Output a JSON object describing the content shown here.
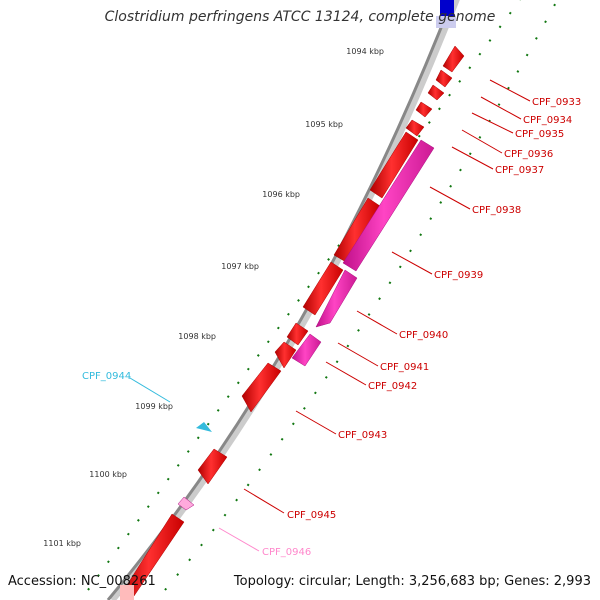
{
  "title": "Clostridium perfringens ATCC 13124, complete genome",
  "accession": "Accession: NC_008261",
  "topology": "Topology: circular; Length: 3,256,683 bp; Genes: 2,993",
  "colors": {
    "forward_gene": "#ee1111",
    "reverse_gene": "#ee22aa",
    "cds_label": "#cc0000",
    "reverse_cds_label": "#ff88cc",
    "other_label": "#33bbdd",
    "tick_marks": "#117711",
    "backbone": "#888888",
    "top_feature": "#0000cc"
  },
  "ticks": [
    "1094 kbp",
    "1095 kbp",
    "1096 kbp",
    "1097 kbp",
    "1098 kbp",
    "1099 kbp",
    "1100 kbp",
    "1101 kbp"
  ],
  "genes": [
    "CPF_0933",
    "CPF_0934",
    "CPF_0935",
    "CPF_0936",
    "CPF_0937",
    "CPF_0938",
    "CPF_0939",
    "CPF_0940",
    "CPF_0941",
    "CPF_0942",
    "CPF_0943",
    "CPF_0944",
    "CPF_0945",
    "CPF_0946"
  ]
}
